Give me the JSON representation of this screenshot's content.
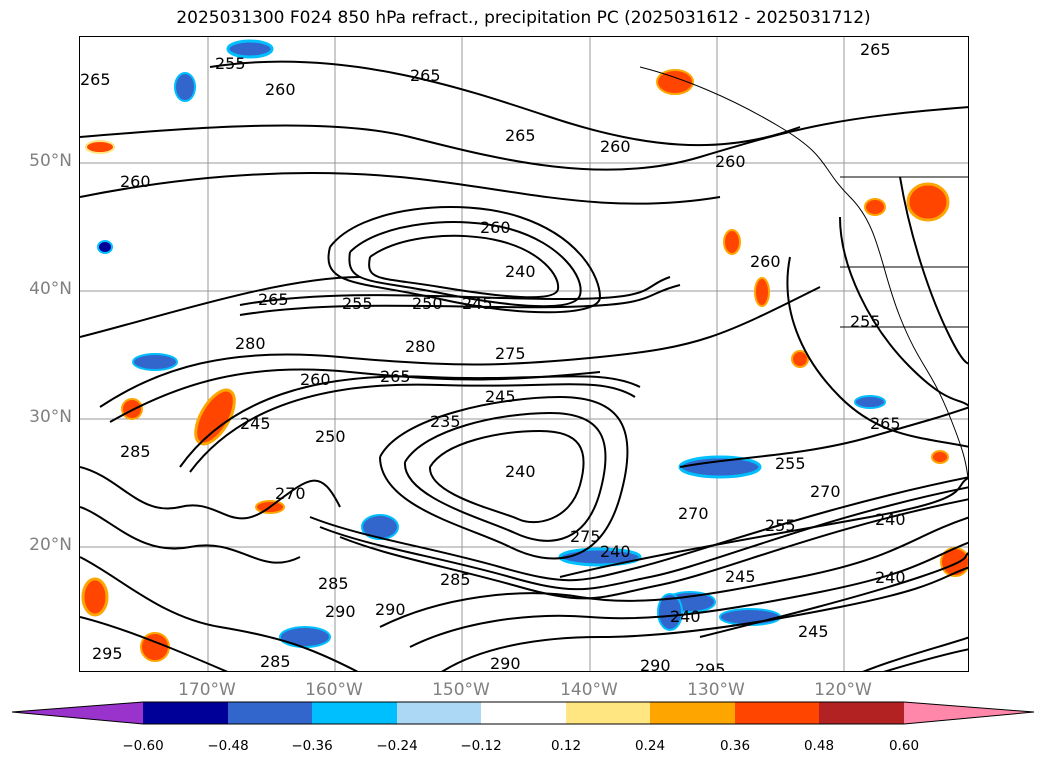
{
  "title": "2025031300 F024 850 hPa refract., precipitation PC (2025031612 - 2025031712)",
  "lat_labels": [
    "50°N",
    "40°N",
    "30°N",
    "20°N"
  ],
  "lon_labels": [
    "170°W",
    "160°W",
    "150°W",
    "140°W",
    "130°W",
    "120°W"
  ],
  "colorbar": {
    "ticks": [
      "−0.60",
      "−0.48",
      "−0.36",
      "−0.24",
      "−0.12",
      "0.12",
      "0.24",
      "0.36",
      "0.48",
      "0.60"
    ],
    "colors": [
      "#9933cc",
      "#000099",
      "#3366cc",
      "#00bfff",
      "#add8f5",
      "#ffffff",
      "#ffe680",
      "#ffa500",
      "#ff4500",
      "#b22222",
      "#ff88aa"
    ]
  },
  "contour_labels": [
    "255",
    "260",
    "265",
    "265",
    "260",
    "265",
    "265",
    "260",
    "240",
    "265",
    "255",
    "250",
    "245",
    "260",
    "260",
    "280",
    "280",
    "260",
    "265",
    "275",
    "245",
    "245",
    "250",
    "235",
    "240",
    "255",
    "270",
    "255",
    "270",
    "275",
    "240",
    "240",
    "245",
    "285",
    "285",
    "290",
    "290",
    "285",
    "290",
    "240",
    "295",
    "290",
    "295",
    "240",
    "245",
    "260",
    "255",
    "270",
    "285",
    "265"
  ]
}
